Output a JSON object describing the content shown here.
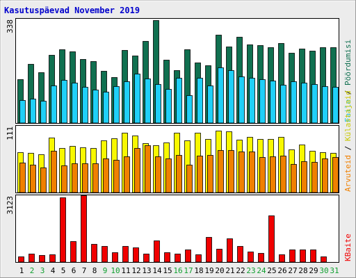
{
  "chart_data": {
    "type": "bar",
    "title": "Kasutuspäevad November 2019",
    "categories": [
      "1",
      "2",
      "3",
      "4",
      "5",
      "6",
      "7",
      "8",
      "9",
      "10",
      "11",
      "12",
      "13",
      "14",
      "15",
      "16",
      "17",
      "18",
      "19",
      "20",
      "21",
      "22",
      "23",
      "24",
      "25",
      "26",
      "27",
      "28",
      "29",
      "30",
      "31"
    ],
    "weekend_days": [
      "2",
      "3",
      "9",
      "10",
      "16",
      "17",
      "23",
      "24",
      "30",
      "31"
    ],
    "panels": [
      {
        "id": "top",
        "max_label": "338",
        "ylim": [
          0,
          338
        ],
        "series": [
          {
            "name": "Pöördumisi",
            "color": "#107050",
            "values": [
              145,
              194,
              166,
              223,
              241,
              235,
              210,
              204,
              172,
              151,
              240,
              221,
              270,
              338,
              208,
              174,
              243,
              199,
              190,
              291,
              252,
              283,
              258,
              256,
              248,
              263,
              231,
              245,
              238,
              250,
              248
            ]
          },
          {
            "name": "Faile",
            "color": "#20d0f8",
            "values": [
              75,
              79,
              72,
              124,
              142,
              132,
              118,
              110,
              102,
              120,
              137,
              163,
              146,
              128,
              112,
              148,
              91,
              148,
              124,
              183,
              174,
              154,
              148,
              143,
              140,
              125,
              138,
              132,
              127,
              122,
              118
            ]
          }
        ]
      },
      {
        "id": "middle",
        "max_label": "111",
        "ylim": [
          0,
          111
        ],
        "series": [
          {
            "name": "Külastajaid",
            "color": "#f8f800",
            "values": [
              68,
              67,
              65,
              93,
              76,
              79,
              77,
              75,
              89,
              92,
              101,
              97,
              84,
              80,
              85,
              101,
              89,
              101,
              91,
              105,
              104,
              90,
              95,
              91,
              91,
              94,
              73,
              81,
              71,
              69,
              67
            ]
          },
          {
            "name": "Arvuteid",
            "color": "#f08000",
            "values": [
              51,
              47,
              42,
              71,
              46,
              50,
              50,
              50,
              58,
              56,
              61,
              76,
              80,
              61,
              58,
              64,
              47,
              63,
              64,
              72,
              72,
              70,
              70,
              60,
              61,
              62,
              49,
              53,
              52,
              58,
              60
            ]
          }
        ]
      },
      {
        "id": "bottom",
        "max_label": "3123",
        "ylim": [
          0,
          3123
        ],
        "series": [
          {
            "name": "KBaite",
            "color": "#f00000",
            "values": [
              270,
              390,
              330,
              380,
              3100,
              1000,
              3200,
              850,
              760,
              480,
              760,
              710,
              400,
              1020,
              480,
              390,
              610,
              360,
              1180,
              620,
              1140,
              760,
              490,
              420,
              2220,
              350,
              590,
              590,
              590,
              260,
              0
            ]
          }
        ]
      }
    ],
    "right_legend": {
      "top": [
        "Pöördumisi",
        "Faile"
      ],
      "middle": [
        "Külastajaid",
        "Arvuteid"
      ],
      "bottom": [
        "KBaite"
      ],
      "separator": " / "
    },
    "colors": {
      "background": "#ececec",
      "plot": "#ffffff",
      "frame": "#000000",
      "title": "#0000cc",
      "day_label": "#000000",
      "weekend_label": "#10a030",
      "visitors_legend": "#c8c800",
      "hits_legend": "#107050",
      "files_legend": "#20c0e8",
      "sites_legend": "#f08000",
      "kbytes_legend": "#f00000"
    }
  }
}
